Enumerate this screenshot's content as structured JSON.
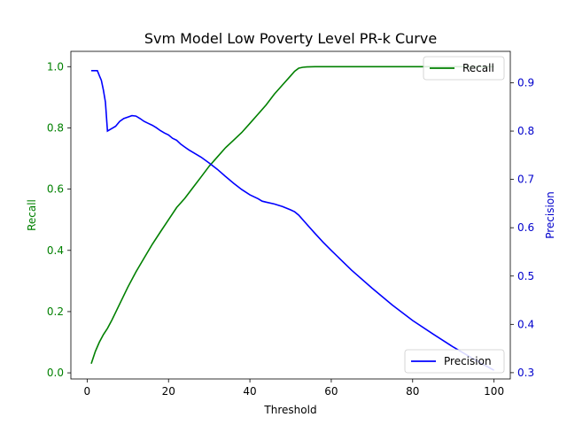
{
  "chart_data": {
    "type": "line",
    "title": "Svm Model Low Poverty Level PR-k Curve",
    "xlabel": "Threshold",
    "ylabel_left": "Recall",
    "ylabel_right": "Precision",
    "xlim": [
      -4.0,
      104.0
    ],
    "ylim_left": [
      -0.02,
      1.05
    ],
    "ylim_right": [
      0.287,
      0.965
    ],
    "x_ticks": [
      0,
      20,
      40,
      60,
      80,
      100
    ],
    "y_left_ticks": [
      0.0,
      0.2,
      0.4,
      0.6,
      0.8,
      1.0
    ],
    "y_right_ticks": [
      0.3,
      0.4,
      0.5,
      0.6,
      0.7,
      0.8,
      0.9
    ],
    "grid": false,
    "colors": {
      "recall": "#008000",
      "precision": "#0000ff",
      "left_axis_text": "#008000",
      "right_axis_text": "#0000cc"
    },
    "series": [
      {
        "name": "Recall",
        "axis": "left",
        "x": [
          1,
          2,
          3,
          4,
          5,
          6,
          8,
          10,
          12,
          14,
          16,
          18,
          20,
          22,
          24,
          26,
          28,
          30,
          32,
          34,
          36,
          38,
          40,
          42,
          44,
          46,
          48,
          50,
          51,
          52,
          53,
          54,
          56,
          60,
          70,
          80,
          90,
          100
        ],
        "y": [
          0.03,
          0.07,
          0.1,
          0.125,
          0.145,
          0.17,
          0.225,
          0.28,
          0.33,
          0.375,
          0.42,
          0.46,
          0.5,
          0.54,
          0.57,
          0.605,
          0.64,
          0.675,
          0.705,
          0.735,
          0.76,
          0.785,
          0.815,
          0.845,
          0.875,
          0.91,
          0.94,
          0.97,
          0.985,
          0.995,
          0.998,
          0.999,
          1.0,
          1.0,
          1.0,
          1.0,
          1.0,
          1.0
        ]
      },
      {
        "name": "Precision",
        "axis": "right",
        "x": [
          1,
          2,
          2.5,
          3,
          3.5,
          4,
          4.5,
          5,
          6,
          7,
          8,
          9,
          10,
          11,
          12,
          13,
          14,
          15,
          16,
          17,
          18,
          19,
          20,
          21,
          22,
          23,
          24,
          25,
          26,
          28,
          30,
          32,
          34,
          36,
          38,
          40,
          42,
          43,
          44,
          46,
          48,
          50,
          51,
          52,
          54,
          56,
          58,
          60,
          65,
          70,
          75,
          80,
          85,
          90,
          95,
          100
        ],
        "y": [
          0.925,
          0.925,
          0.925,
          0.915,
          0.905,
          0.885,
          0.86,
          0.8,
          0.805,
          0.81,
          0.82,
          0.826,
          0.829,
          0.832,
          0.831,
          0.826,
          0.82,
          0.816,
          0.812,
          0.807,
          0.801,
          0.796,
          0.792,
          0.785,
          0.781,
          0.773,
          0.767,
          0.761,
          0.756,
          0.746,
          0.734,
          0.721,
          0.706,
          0.692,
          0.679,
          0.668,
          0.66,
          0.655,
          0.653,
          0.649,
          0.644,
          0.637,
          0.633,
          0.626,
          0.607,
          0.588,
          0.57,
          0.553,
          0.512,
          0.475,
          0.44,
          0.408,
          0.38,
          0.353,
          0.328,
          0.305
        ]
      }
    ],
    "legends": [
      {
        "series": "Recall",
        "placement": "upper-right"
      },
      {
        "series": "Precision",
        "placement": "lower-right"
      }
    ]
  }
}
